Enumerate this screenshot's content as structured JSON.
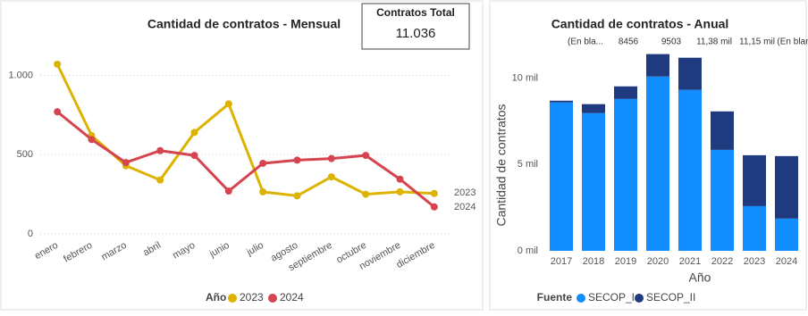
{
  "card": {
    "title": "Contratos Total",
    "value": "11.036"
  },
  "chart_data": [
    {
      "type": "line",
      "title": "Cantidad de contratos - Mensual",
      "categories": [
        "enero",
        "febrero",
        "marzo",
        "abril",
        "mayo",
        "junio",
        "julio",
        "agosto",
        "septiembre",
        "octubre",
        "noviembre",
        "diciembre"
      ],
      "series": [
        {
          "name": "2023",
          "color": "#dcb300",
          "values": [
            1070,
            620,
            430,
            340,
            640,
            820,
            265,
            240,
            360,
            250,
            265,
            255
          ]
        },
        {
          "name": "2024",
          "color": "#d5444f",
          "values": [
            770,
            595,
            450,
            525,
            495,
            270,
            445,
            465,
            475,
            495,
            345,
            170
          ]
        }
      ],
      "legend_title": "Año",
      "ylim": [
        0,
        1250
      ],
      "yticks": [
        0,
        500,
        {
          "value": 1000,
          "label": "1.000"
        }
      ],
      "grid": true
    },
    {
      "type": "stacked_bar",
      "title": "Cantidad de contratos - Anual",
      "annotations": [
        "(En bla...",
        "8456",
        "9503",
        "11,38 mil",
        "11,15 mil",
        "(En blanco)"
      ],
      "categories": [
        "2017",
        "2018",
        "2019",
        "2020",
        "2021",
        "2022",
        "2023",
        "2024"
      ],
      "series": [
        {
          "name": "SECOP_I",
          "color": "#118dff",
          "values": [
            8600,
            7980,
            8800,
            10100,
            9330,
            5850,
            2590,
            1870
          ]
        },
        {
          "name": "SECOP_II",
          "color": "#1f3a7e",
          "values": [
            100,
            520,
            730,
            1300,
            1860,
            2230,
            2950,
            3620
          ]
        }
      ],
      "legend_title": "Fuente",
      "x_label": "Año",
      "y_label": "Cantidad de contratos",
      "ylim": [
        0,
        12000
      ],
      "yticks": [
        {
          "value": 0,
          "label": "0 mil"
        },
        {
          "value": 5000,
          "label": "5 mil"
        },
        {
          "value": 10000,
          "label": "10 mil"
        }
      ],
      "grid": false
    }
  ]
}
